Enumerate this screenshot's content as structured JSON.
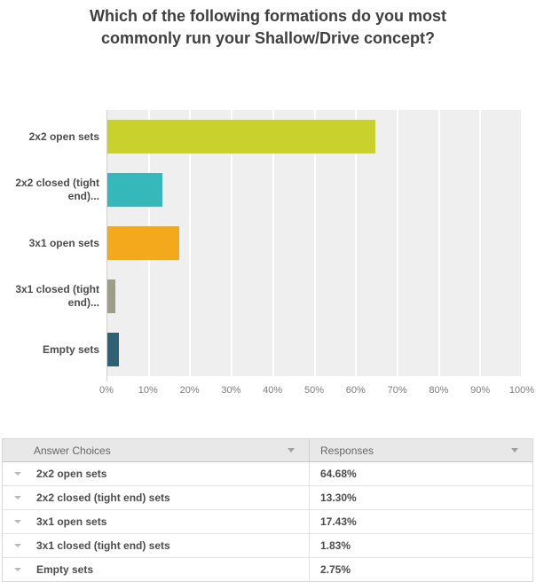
{
  "title": "Which of the following formations do you most commonly run your Shallow/Drive concept?",
  "chart_data": {
    "type": "bar",
    "orientation": "horizontal",
    "title": "Which of the following formations do you most commonly run your Shallow/Drive concept?",
    "categories": [
      "2x2 open sets",
      "2x2 closed (tight end)...",
      "3x1 open sets",
      "3x1 closed (tight end)...",
      "Empty sets"
    ],
    "values": [
      64.68,
      13.3,
      17.43,
      1.83,
      2.75
    ],
    "bar_colors": [
      "#c9d22d",
      "#36b8bb",
      "#f4a81c",
      "#9e9d86",
      "#2f6174"
    ],
    "x_ticks": [
      "0%",
      "10%",
      "20%",
      "30%",
      "40%",
      "50%",
      "60%",
      "70%",
      "80%",
      "90%",
      "100%"
    ],
    "xlim": [
      0,
      100
    ],
    "plot_background": "#f0efef",
    "gridline_color": "#ffffff",
    "legend": "none",
    "grid": "vertical"
  },
  "table": {
    "header": {
      "answer_choices": "Answer Choices",
      "responses": "Responses"
    },
    "rows": [
      {
        "label": "2x2 open sets",
        "value": "64.68%"
      },
      {
        "label": "2x2 closed (tight end) sets",
        "value": "13.30%"
      },
      {
        "label": "3x1 open sets",
        "value": "17.43%"
      },
      {
        "label": "3x1 closed (tight end) sets",
        "value": "1.83%"
      },
      {
        "label": "Empty sets",
        "value": "2.75%"
      }
    ]
  }
}
